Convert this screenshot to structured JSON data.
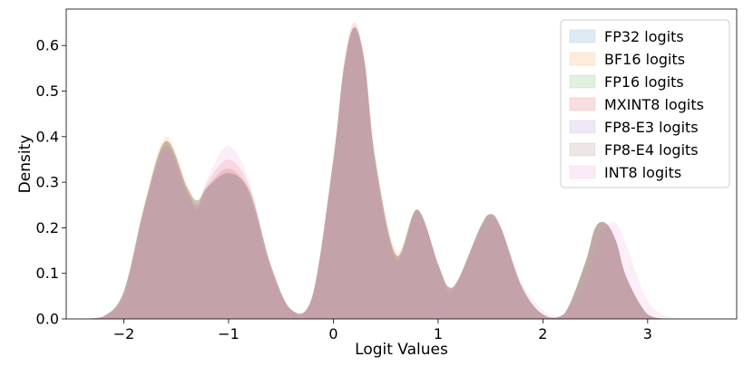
{
  "chart_data": {
    "type": "area",
    "title": "",
    "xlabel": "Logit Values",
    "ylabel": "Density",
    "xlim": [
      -2.55,
      3.85
    ],
    "ylim": [
      0,
      0.68
    ],
    "xticks": [
      -2,
      -1,
      0,
      1,
      2,
      3
    ],
    "xtick_labels": [
      "−2",
      "−1",
      "0",
      "1",
      "2",
      "3"
    ],
    "yticks": [
      0.0,
      0.1,
      0.2,
      0.3,
      0.4,
      0.5,
      0.6
    ],
    "ytick_labels": [
      "0.0",
      "0.1",
      "0.2",
      "0.3",
      "0.4",
      "0.5",
      "0.6"
    ],
    "grid": false,
    "legend_position": "top-right",
    "x": [
      -2.4,
      -2.2,
      -2.0,
      -1.8,
      -1.6,
      -1.4,
      -1.3,
      -1.2,
      -1.0,
      -0.8,
      -0.6,
      -0.4,
      -0.2,
      0.0,
      0.1,
      0.2,
      0.3,
      0.4,
      0.6,
      0.8,
      1.0,
      1.1,
      1.2,
      1.4,
      1.5,
      1.6,
      1.8,
      2.0,
      2.2,
      2.4,
      2.5,
      2.6,
      2.7,
      2.8,
      3.0,
      3.2,
      3.4
    ],
    "series": [
      {
        "name": "FP32 logits",
        "color": "#1f77b4",
        "values": [
          0.0,
          0.005,
          0.06,
          0.25,
          0.39,
          0.29,
          0.26,
          0.29,
          0.32,
          0.28,
          0.12,
          0.02,
          0.05,
          0.35,
          0.55,
          0.64,
          0.56,
          0.35,
          0.14,
          0.24,
          0.12,
          0.07,
          0.09,
          0.2,
          0.23,
          0.2,
          0.07,
          0.01,
          0.01,
          0.12,
          0.2,
          0.21,
          0.17,
          0.09,
          0.01,
          0.0,
          0.0
        ]
      },
      {
        "name": "BF16 logits",
        "color": "#ff7f0e",
        "values": [
          0.0,
          0.005,
          0.06,
          0.26,
          0.4,
          0.3,
          0.26,
          0.29,
          0.33,
          0.28,
          0.12,
          0.02,
          0.05,
          0.36,
          0.56,
          0.65,
          0.57,
          0.36,
          0.15,
          0.24,
          0.12,
          0.07,
          0.09,
          0.2,
          0.23,
          0.2,
          0.07,
          0.01,
          0.01,
          0.12,
          0.2,
          0.21,
          0.17,
          0.09,
          0.01,
          0.0,
          0.0
        ]
      },
      {
        "name": "FP16 logits",
        "color": "#2ca02c",
        "values": [
          0.0,
          0.005,
          0.06,
          0.25,
          0.39,
          0.29,
          0.26,
          0.29,
          0.32,
          0.28,
          0.12,
          0.02,
          0.05,
          0.35,
          0.55,
          0.64,
          0.56,
          0.35,
          0.14,
          0.24,
          0.12,
          0.07,
          0.09,
          0.2,
          0.23,
          0.2,
          0.07,
          0.01,
          0.01,
          0.12,
          0.2,
          0.21,
          0.17,
          0.09,
          0.01,
          0.0,
          0.0
        ]
      },
      {
        "name": "MXINT8 logits",
        "color": "#d62728",
        "values": [
          0.0,
          0.005,
          0.06,
          0.25,
          0.39,
          0.29,
          0.25,
          0.3,
          0.35,
          0.29,
          0.12,
          0.02,
          0.05,
          0.35,
          0.55,
          0.64,
          0.56,
          0.35,
          0.14,
          0.24,
          0.12,
          0.07,
          0.09,
          0.2,
          0.23,
          0.2,
          0.07,
          0.01,
          0.01,
          0.12,
          0.2,
          0.21,
          0.17,
          0.09,
          0.01,
          0.0,
          0.0
        ]
      },
      {
        "name": "FP8-E3 logits",
        "color": "#9467bd",
        "values": [
          0.0,
          0.005,
          0.06,
          0.25,
          0.38,
          0.28,
          0.24,
          0.29,
          0.33,
          0.27,
          0.11,
          0.02,
          0.05,
          0.35,
          0.55,
          0.64,
          0.56,
          0.34,
          0.13,
          0.24,
          0.12,
          0.06,
          0.09,
          0.2,
          0.23,
          0.2,
          0.07,
          0.01,
          0.01,
          0.12,
          0.2,
          0.21,
          0.17,
          0.09,
          0.01,
          0.0,
          0.0
        ]
      },
      {
        "name": "FP8-E4 logits",
        "color": "#8c564b",
        "values": [
          0.0,
          0.005,
          0.06,
          0.25,
          0.39,
          0.29,
          0.26,
          0.29,
          0.32,
          0.28,
          0.12,
          0.02,
          0.05,
          0.35,
          0.55,
          0.64,
          0.56,
          0.35,
          0.14,
          0.24,
          0.12,
          0.07,
          0.09,
          0.2,
          0.23,
          0.2,
          0.07,
          0.01,
          0.01,
          0.12,
          0.2,
          0.21,
          0.17,
          0.09,
          0.01,
          0.0,
          0.0
        ]
      },
      {
        "name": "INT8 logits",
        "color": "#e377c2",
        "values": [
          0.0,
          0.005,
          0.05,
          0.24,
          0.37,
          0.28,
          0.25,
          0.31,
          0.38,
          0.3,
          0.12,
          0.02,
          0.05,
          0.34,
          0.56,
          0.65,
          0.56,
          0.34,
          0.13,
          0.23,
          0.12,
          0.07,
          0.09,
          0.19,
          0.22,
          0.2,
          0.08,
          0.02,
          0.01,
          0.08,
          0.15,
          0.2,
          0.21,
          0.16,
          0.04,
          0.005,
          0.0
        ]
      }
    ]
  }
}
